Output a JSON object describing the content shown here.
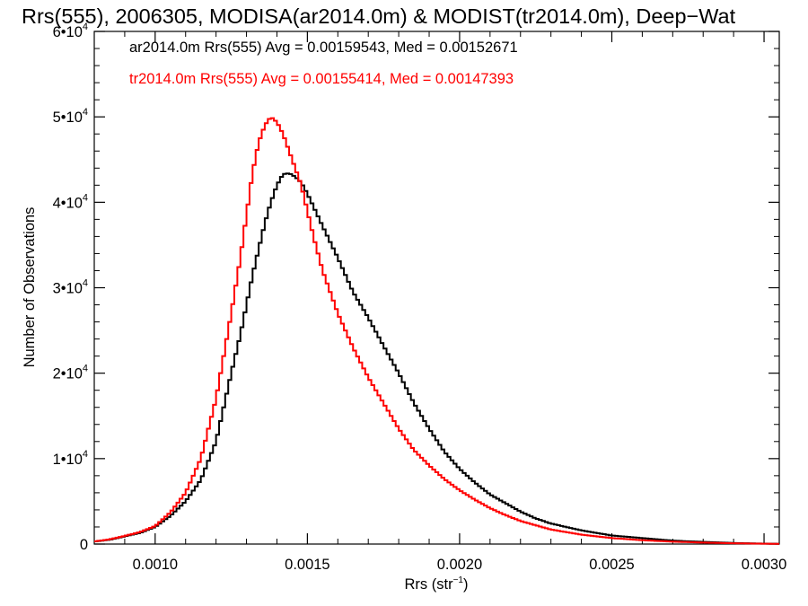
{
  "chart_data": {
    "type": "line",
    "title": "Rrs(555), 2006305, MODISA(ar2014.0m) & MODIST(tr2014.0m), Deep−Wat",
    "xlabel": "Rrs (str",
    "xlabel_sup": "−1",
    "xlabel_suffix": ")",
    "ylabel": "Number of Observations",
    "xlim": [
      0.0008,
      0.00305
    ],
    "ylim": [
      0,
      60000
    ],
    "grid": false,
    "x_ticks": [
      {
        "value": 0.001,
        "label": "0.0010"
      },
      {
        "value": 0.0015,
        "label": "0.0015"
      },
      {
        "value": 0.002,
        "label": "0.0020"
      },
      {
        "value": 0.0025,
        "label": "0.0025"
      },
      {
        "value": 0.003,
        "label": "0.0030"
      }
    ],
    "y_ticks": [
      {
        "value": 0,
        "base": "0",
        "exp": ""
      },
      {
        "value": 10000,
        "base": "1•10",
        "exp": "4"
      },
      {
        "value": 20000,
        "base": "2•10",
        "exp": "4"
      },
      {
        "value": 30000,
        "base": "3•10",
        "exp": "4"
      },
      {
        "value": 40000,
        "base": "4•10",
        "exp": "4"
      },
      {
        "value": 50000,
        "base": "5•10",
        "exp": "4"
      },
      {
        "value": 60000,
        "base": "6•10",
        "exp": "4"
      }
    ],
    "annotations": [
      {
        "text": "ar2014.0m Rrs(555) Avg = 0.00159543, Med = 0.00152671",
        "color": "#000000"
      },
      {
        "text": "tr2014.0m Rrs(555) Avg = 0.00155414, Med = 0.00147393",
        "color": "#ff0000"
      }
    ],
    "series": [
      {
        "color": "#000000",
        "x": [
          0.0008,
          0.00085,
          0.0009,
          0.00095,
          0.001,
          0.00105,
          0.0011,
          0.00115,
          0.0012,
          0.00125,
          0.00128,
          0.0013,
          0.00132,
          0.00134,
          0.00136,
          0.00138,
          0.0014,
          0.00142,
          0.00144,
          0.00146,
          0.00148,
          0.0015,
          0.00152,
          0.00155,
          0.0016,
          0.00165,
          0.0017,
          0.00175,
          0.0018,
          0.00185,
          0.0019,
          0.00195,
          0.002,
          0.00205,
          0.0021,
          0.00215,
          0.0022,
          0.00225,
          0.0023,
          0.0024,
          0.0025,
          0.0026,
          0.0027,
          0.0028,
          0.0029,
          0.003,
          0.00305
        ],
        "y": [
          300,
          500,
          900,
          1300,
          2000,
          3300,
          5000,
          7500,
          12000,
          20000,
          24500,
          28000,
          31500,
          34500,
          37500,
          40000,
          42000,
          43300,
          43400,
          43000,
          42300,
          41000,
          39500,
          37200,
          33500,
          29500,
          26500,
          23200,
          20000,
          16500,
          13500,
          10800,
          8800,
          7200,
          5800,
          4800,
          3800,
          3000,
          2400,
          1600,
          1000,
          700,
          400,
          250,
          120,
          50,
          30
        ]
      },
      {
        "color": "#ff0000",
        "x": [
          0.0008,
          0.00085,
          0.0009,
          0.00095,
          0.001,
          0.00105,
          0.0011,
          0.00115,
          0.0012,
          0.00125,
          0.00128,
          0.0013,
          0.00132,
          0.00134,
          0.00136,
          0.00138,
          0.0014,
          0.00142,
          0.00144,
          0.00146,
          0.00148,
          0.0015,
          0.00152,
          0.00155,
          0.0016,
          0.00165,
          0.0017,
          0.00175,
          0.0018,
          0.00185,
          0.0019,
          0.00195,
          0.002,
          0.00205,
          0.0021,
          0.00215,
          0.0022,
          0.00225,
          0.0023,
          0.0024,
          0.0025,
          0.0026,
          0.0027,
          0.0028,
          0.0029,
          0.003,
          0.00305
        ],
        "y": [
          300,
          550,
          950,
          1400,
          2100,
          3700,
          6000,
          10000,
          17000,
          27000,
          33500,
          38500,
          43500,
          47000,
          49000,
          50000,
          49400,
          48000,
          46000,
          44000,
          42000,
          39000,
          36000,
          32000,
          27000,
          23000,
          19500,
          16500,
          13500,
          11000,
          9200,
          7600,
          6300,
          5200,
          4200,
          3400,
          2700,
          2200,
          1700,
          1100,
          700,
          450,
          280,
          170,
          90,
          40,
          20
        ]
      }
    ]
  }
}
